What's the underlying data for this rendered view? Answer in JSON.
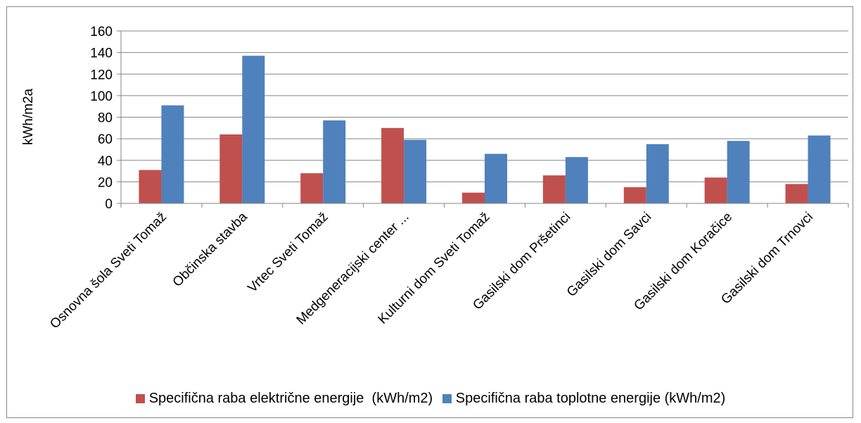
{
  "chart_data": {
    "type": "bar",
    "title": "",
    "xlabel": "",
    "ylabel": "kWh/m2a",
    "ylim": [
      0,
      160
    ],
    "yticks": [
      0,
      20,
      40,
      60,
      80,
      100,
      120,
      140,
      160
    ],
    "grid": true,
    "legend_position": "bottom",
    "categories": [
      "Osnovna šola Sveti Tomaž",
      "Občinska stavba",
      "Vrtec Sveti Tomaž",
      "Medgeneracijski center ...",
      "Kulturni dom Sveti Tomaž",
      "Gasilski dom Pršetinci",
      "Gasilski dom Savci",
      "Gasilski dom Koračice",
      "Gasilski dom Trnovci"
    ],
    "series": [
      {
        "name": "Specifična raba električne energije  (kWh/m2)",
        "color": "#c0504d",
        "values": [
          31,
          64,
          28,
          70,
          10,
          26,
          15,
          24,
          18
        ]
      },
      {
        "name": "Specifična raba toplotne energije (kWh/m2)",
        "color": "#4f81bd",
        "values": [
          91,
          137,
          77,
          59,
          46,
          43,
          55,
          58,
          63
        ]
      }
    ]
  }
}
